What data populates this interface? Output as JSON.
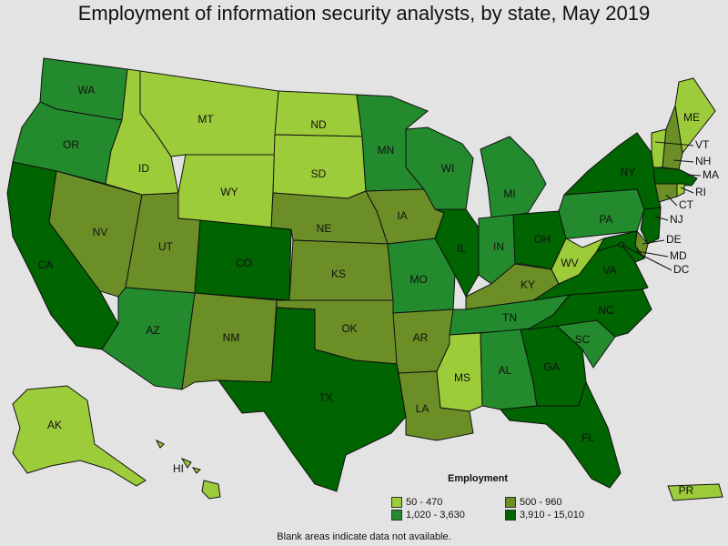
{
  "title": "Employment of information security analysts, by state, May 2019",
  "footnote": "Blank areas indicate data not available.",
  "legend": {
    "title": "Employment",
    "items": [
      {
        "label": "50 - 470",
        "color": "#9dcc3a"
      },
      {
        "label": "500 - 960",
        "color": "#6b8f26"
      },
      {
        "label": "1,020 - 3,630",
        "color": "#238b2e"
      },
      {
        "label": "3,910 - 15,010",
        "color": "#006400"
      }
    ]
  },
  "states": [
    {
      "abbr": "WA",
      "class": 2
    },
    {
      "abbr": "OR",
      "class": 2
    },
    {
      "abbr": "CA",
      "class": 3
    },
    {
      "abbr": "NV",
      "class": 1
    },
    {
      "abbr": "ID",
      "class": 0
    },
    {
      "abbr": "MT",
      "class": 0
    },
    {
      "abbr": "WY",
      "class": 0
    },
    {
      "abbr": "UT",
      "class": 1
    },
    {
      "abbr": "AZ",
      "class": 2
    },
    {
      "abbr": "CO",
      "class": 3
    },
    {
      "abbr": "NM",
      "class": 1
    },
    {
      "abbr": "ND",
      "class": 0
    },
    {
      "abbr": "SD",
      "class": 0
    },
    {
      "abbr": "NE",
      "class": 1
    },
    {
      "abbr": "KS",
      "class": 1
    },
    {
      "abbr": "OK",
      "class": 1
    },
    {
      "abbr": "TX",
      "class": 3
    },
    {
      "abbr": "MN",
      "class": 2
    },
    {
      "abbr": "IA",
      "class": 1
    },
    {
      "abbr": "MO",
      "class": 2
    },
    {
      "abbr": "AR",
      "class": 1
    },
    {
      "abbr": "LA",
      "class": 1
    },
    {
      "abbr": "WI",
      "class": 2
    },
    {
      "abbr": "IL",
      "class": 3
    },
    {
      "abbr": "MI",
      "class": 2
    },
    {
      "abbr": "IN",
      "class": 2
    },
    {
      "abbr": "OH",
      "class": 3
    },
    {
      "abbr": "KY",
      "class": 1
    },
    {
      "abbr": "TN",
      "class": 2
    },
    {
      "abbr": "MS",
      "class": 0
    },
    {
      "abbr": "AL",
      "class": 2
    },
    {
      "abbr": "GA",
      "class": 3
    },
    {
      "abbr": "FL",
      "class": 3
    },
    {
      "abbr": "SC",
      "class": 2
    },
    {
      "abbr": "NC",
      "class": 3
    },
    {
      "abbr": "VA",
      "class": 3
    },
    {
      "abbr": "WV",
      "class": 0
    },
    {
      "abbr": "PA",
      "class": 2
    },
    {
      "abbr": "NY",
      "class": 3
    },
    {
      "abbr": "VT",
      "class": 0
    },
    {
      "abbr": "NH",
      "class": 1
    },
    {
      "abbr": "ME",
      "class": 0
    },
    {
      "abbr": "MA",
      "class": 3
    },
    {
      "abbr": "RI",
      "class": 0
    },
    {
      "abbr": "CT",
      "class": 1
    },
    {
      "abbr": "NJ",
      "class": 3
    },
    {
      "abbr": "DE",
      "class": 1
    },
    {
      "abbr": "MD",
      "class": 3
    },
    {
      "abbr": "DC",
      "class": 3
    },
    {
      "abbr": "AK",
      "class": 0
    },
    {
      "abbr": "HI",
      "class": 0
    },
    {
      "abbr": "PR",
      "class": 0
    }
  ]
}
